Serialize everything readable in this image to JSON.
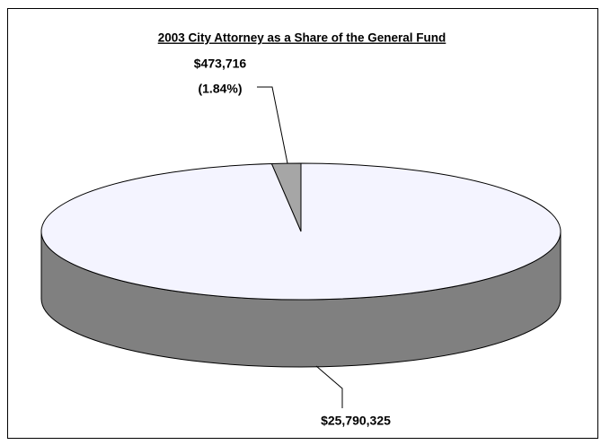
{
  "chart_data": {
    "type": "pie",
    "title": "2003 City Attorney as a Share of the General Fund",
    "categories": [
      null,
      null
    ],
    "values": [
      473716,
      25790325
    ],
    "value_labels": [
      "$473,716",
      "$25,790,325"
    ],
    "percent_labels": [
      "(1.84%)",
      null
    ],
    "colors": [
      "#a6a6a6",
      "#f4f4ff"
    ],
    "side_color": "#808080"
  }
}
